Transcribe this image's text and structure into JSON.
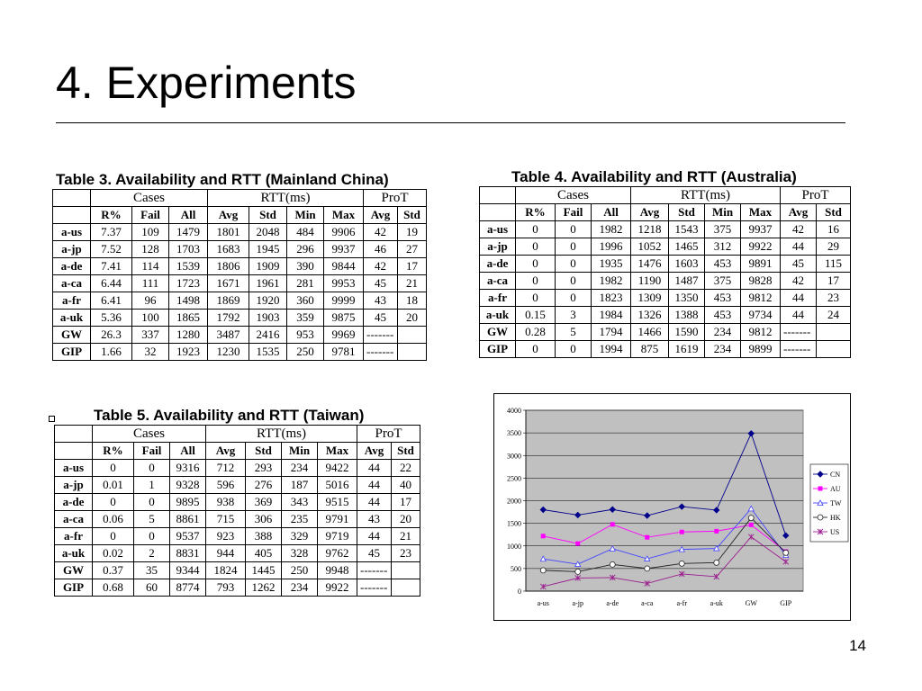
{
  "slide": {
    "title": "4. Experiments",
    "page_number": "14"
  },
  "tables": [
    {
      "caption": "Table 3. Availability and RTT (Mainland China)",
      "group_headers": {
        "cases": "Cases",
        "rtt": "RTT(ms)",
        "prot": "ProT"
      },
      "col_headers": [
        "R%",
        "Fail",
        "All",
        "Avg",
        "Std",
        "Min",
        "Max",
        "Avg",
        "Std"
      ],
      "rows": [
        {
          "site": "a-us",
          "r": "7.37",
          "fail": "109",
          "all": "1479",
          "avg": "1801",
          "std": "2048",
          "min": "484",
          "max": "9906",
          "pavg": "42",
          "pstd": "19"
        },
        {
          "site": "a-jp",
          "r": "7.52",
          "fail": "128",
          "all": "1703",
          "avg": "1683",
          "std": "1945",
          "min": "296",
          "max": "9937",
          "pavg": "46",
          "pstd": "27"
        },
        {
          "site": "a-de",
          "r": "7.41",
          "fail": "114",
          "all": "1539",
          "avg": "1806",
          "std": "1909",
          "min": "390",
          "max": "9844",
          "pavg": "42",
          "pstd": "17"
        },
        {
          "site": "a-ca",
          "r": "6.44",
          "fail": "111",
          "all": "1723",
          "avg": "1671",
          "std": "1961",
          "min": "281",
          "max": "9953",
          "pavg": "45",
          "pstd": "21"
        },
        {
          "site": "a-fr",
          "r": "6.41",
          "fail": "96",
          "all": "1498",
          "avg": "1869",
          "std": "1920",
          "min": "360",
          "max": "9999",
          "pavg": "43",
          "pstd": "18"
        },
        {
          "site": "a-uk",
          "r": "5.36",
          "fail": "100",
          "all": "1865",
          "avg": "1792",
          "std": "1903",
          "min": "359",
          "max": "9875",
          "pavg": "45",
          "pstd": "20"
        },
        {
          "site": "GW",
          "r": "26.3",
          "fail": "337",
          "all": "1280",
          "avg": "3487",
          "std": "2416",
          "min": "953",
          "max": "9969",
          "pavg": "-------",
          "pstd": ""
        },
        {
          "site": "GIP",
          "r": "1.66",
          "fail": "32",
          "all": "1923",
          "avg": "1230",
          "std": "1535",
          "min": "250",
          "max": "9781",
          "pavg": "-------",
          "pstd": ""
        }
      ]
    },
    {
      "caption": "Table 4. Availability and RTT (Australia)",
      "group_headers": {
        "cases": "Cases",
        "rtt": "RTT(ms)",
        "prot": "ProT"
      },
      "col_headers": [
        "R%",
        "Fail",
        "All",
        "Avg",
        "Std",
        "Min",
        "Max",
        "Avg",
        "Std"
      ],
      "rows": [
        {
          "site": "a-us",
          "r": "0",
          "fail": "0",
          "all": "1982",
          "avg": "1218",
          "std": "1543",
          "min": "375",
          "max": "9937",
          "pavg": "42",
          "pstd": "16"
        },
        {
          "site": "a-jp",
          "r": "0",
          "fail": "0",
          "all": "1996",
          "avg": "1052",
          "std": "1465",
          "min": "312",
          "max": "9922",
          "pavg": "44",
          "pstd": "29"
        },
        {
          "site": "a-de",
          "r": "0",
          "fail": "0",
          "all": "1935",
          "avg": "1476",
          "std": "1603",
          "min": "453",
          "max": "9891",
          "pavg": "45",
          "pstd": "115"
        },
        {
          "site": "a-ca",
          "r": "0",
          "fail": "0",
          "all": "1982",
          "avg": "1190",
          "std": "1487",
          "min": "375",
          "max": "9828",
          "pavg": "42",
          "pstd": "17"
        },
        {
          "site": "a-fr",
          "r": "0",
          "fail": "0",
          "all": "1823",
          "avg": "1309",
          "std": "1350",
          "min": "453",
          "max": "9812",
          "pavg": "44",
          "pstd": "23"
        },
        {
          "site": "a-uk",
          "r": "0.15",
          "fail": "3",
          "all": "1984",
          "avg": "1326",
          "std": "1388",
          "min": "453",
          "max": "9734",
          "pavg": "44",
          "pstd": "24"
        },
        {
          "site": "GW",
          "r": "0.28",
          "fail": "5",
          "all": "1794",
          "avg": "1466",
          "std": "1590",
          "min": "234",
          "max": "9812",
          "pavg": "-------",
          "pstd": ""
        },
        {
          "site": "GIP",
          "r": "0",
          "fail": "0",
          "all": "1994",
          "avg": "875",
          "std": "1619",
          "min": "234",
          "max": "9899",
          "pavg": "-------",
          "pstd": ""
        }
      ]
    },
    {
      "caption": "Table 5. Availability and RTT (Taiwan)",
      "group_headers": {
        "cases": "Cases",
        "rtt": "RTT(ms)",
        "prot": "ProT"
      },
      "col_headers": [
        "R%",
        "Fail",
        "All",
        "Avg",
        "Std",
        "Min",
        "Max",
        "Avg",
        "Std"
      ],
      "rows": [
        {
          "site": "a-us",
          "r": "0",
          "fail": "0",
          "all": "9316",
          "avg": "712",
          "std": "293",
          "min": "234",
          "max": "9422",
          "pavg": "44",
          "pstd": "22"
        },
        {
          "site": "a-jp",
          "r": "0.01",
          "fail": "1",
          "all": "9328",
          "avg": "596",
          "std": "276",
          "min": "187",
          "max": "5016",
          "pavg": "44",
          "pstd": "40"
        },
        {
          "site": "a-de",
          "r": "0",
          "fail": "0",
          "all": "9895",
          "avg": "938",
          "std": "369",
          "min": "343",
          "max": "9515",
          "pavg": "44",
          "pstd": "17"
        },
        {
          "site": "a-ca",
          "r": "0.06",
          "fail": "5",
          "all": "8861",
          "avg": "715",
          "std": "306",
          "min": "235",
          "max": "9791",
          "pavg": "43",
          "pstd": "20"
        },
        {
          "site": "a-fr",
          "r": "0",
          "fail": "0",
          "all": "9537",
          "avg": "923",
          "std": "388",
          "min": "329",
          "max": "9719",
          "pavg": "44",
          "pstd": "21"
        },
        {
          "site": "a-uk",
          "r": "0.02",
          "fail": "2",
          "all": "8831",
          "avg": "944",
          "std": "405",
          "min": "328",
          "max": "9762",
          "pavg": "45",
          "pstd": "23"
        },
        {
          "site": "GW",
          "r": "0.37",
          "fail": "35",
          "all": "9344",
          "avg": "1824",
          "std": "1445",
          "min": "250",
          "max": "9948",
          "pavg": "-------",
          "pstd": ""
        },
        {
          "site": "GIP",
          "r": "0.68",
          "fail": "60",
          "all": "8774",
          "avg": "793",
          "std": "1262",
          "min": "234",
          "max": "9922",
          "pavg": "-------",
          "pstd": ""
        }
      ]
    }
  ],
  "chart_data": {
    "type": "line",
    "title": "",
    "xlabel": "",
    "ylabel": "",
    "categories": [
      "a-us",
      "a-jp",
      "a-de",
      "a-ca",
      "a-fr",
      "a-uk",
      "GW",
      "GIP"
    ],
    "ylim": [
      0,
      4000
    ],
    "yticks": [
      "0",
      "500",
      "1000",
      "1500",
      "2000",
      "2500",
      "3000",
      "3500",
      "4000"
    ],
    "grid": true,
    "legend_position": "right",
    "plot_background": "#c0c0c0",
    "series": [
      {
        "name": "CN",
        "color": "#00008b",
        "marker": "diamond",
        "values": [
          1801,
          1683,
          1806,
          1671,
          1869,
          1792,
          3487,
          1230
        ]
      },
      {
        "name": "AU",
        "color": "#ff00ff",
        "marker": "square",
        "values": [
          1218,
          1052,
          1476,
          1190,
          1309,
          1326,
          1466,
          875
        ]
      },
      {
        "name": "TW",
        "color": "#4444ff",
        "marker": "triangle",
        "values": [
          712,
          596,
          938,
          715,
          923,
          944,
          1824,
          793
        ]
      },
      {
        "name": "HK",
        "color": "#222222",
        "marker": "circle",
        "values": [
          460,
          430,
          590,
          500,
          610,
          630,
          1620,
          850
        ]
      },
      {
        "name": "US",
        "color": "#9b1c8f",
        "marker": "star",
        "values": [
          100,
          290,
          300,
          170,
          380,
          320,
          1200,
          650
        ]
      }
    ]
  }
}
